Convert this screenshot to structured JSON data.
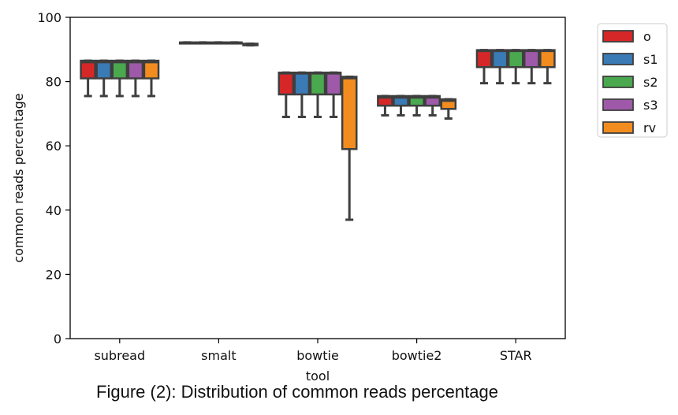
{
  "chart_data": {
    "type": "box",
    "xlabel": "tool",
    "ylabel": "common reads percentage",
    "ylim": [
      0,
      100
    ],
    "yticks": [
      0,
      20,
      40,
      60,
      80,
      100
    ],
    "categories": [
      "subread",
      "smalt",
      "bowtie",
      "bowtie2",
      "STAR"
    ],
    "legend": {
      "placement": "outside-top-right"
    },
    "grid": false,
    "series": [
      {
        "name": "o",
        "color": "#d62728",
        "boxes": [
          {
            "whislo": 75.5,
            "q1": 81,
            "median": 86,
            "q3": 86.5,
            "whishi": 86.5
          },
          {
            "whislo": 92,
            "q1": 92,
            "median": 92,
            "q3": 92.2,
            "whishi": 92.2
          },
          {
            "whislo": 69,
            "q1": 76,
            "median": 82.5,
            "q3": 82.8,
            "whishi": 82.8
          },
          {
            "whislo": 69.5,
            "q1": 72.5,
            "median": 75,
            "q3": 75.5,
            "whishi": 75.5
          },
          {
            "whislo": 79.5,
            "q1": 84.5,
            "median": 89.5,
            "q3": 89.8,
            "whishi": 89.8
          }
        ]
      },
      {
        "name": "s1",
        "color": "#3a7ab5",
        "boxes": [
          {
            "whislo": 75.5,
            "q1": 81,
            "median": 86,
            "q3": 86.5,
            "whishi": 86.5
          },
          {
            "whislo": 92,
            "q1": 92,
            "median": 92,
            "q3": 92.2,
            "whishi": 92.2
          },
          {
            "whislo": 69,
            "q1": 76,
            "median": 82.5,
            "q3": 82.8,
            "whishi": 82.8
          },
          {
            "whislo": 69.5,
            "q1": 72.5,
            "median": 75,
            "q3": 75.5,
            "whishi": 75.5
          },
          {
            "whislo": 79.5,
            "q1": 84.5,
            "median": 89.5,
            "q3": 89.8,
            "whishi": 89.8
          }
        ]
      },
      {
        "name": "s2",
        "color": "#4aa84f",
        "boxes": [
          {
            "whislo": 75.5,
            "q1": 81,
            "median": 86,
            "q3": 86.5,
            "whishi": 86.5
          },
          {
            "whislo": 92,
            "q1": 92,
            "median": 92,
            "q3": 92.2,
            "whishi": 92.2
          },
          {
            "whislo": 69,
            "q1": 76,
            "median": 82.5,
            "q3": 82.8,
            "whishi": 82.8
          },
          {
            "whislo": 69.5,
            "q1": 72.5,
            "median": 75,
            "q3": 75.5,
            "whishi": 75.5
          },
          {
            "whislo": 79.5,
            "q1": 84.5,
            "median": 89.5,
            "q3": 89.8,
            "whishi": 89.8
          }
        ]
      },
      {
        "name": "s3",
        "color": "#9e5aa8",
        "boxes": [
          {
            "whislo": 75.5,
            "q1": 81,
            "median": 86,
            "q3": 86.5,
            "whishi": 86.5
          },
          {
            "whislo": 92,
            "q1": 92,
            "median": 92,
            "q3": 92.2,
            "whishi": 92.2
          },
          {
            "whislo": 69,
            "q1": 76,
            "median": 82.5,
            "q3": 82.8,
            "whishi": 82.8
          },
          {
            "whislo": 69.5,
            "q1": 72.5,
            "median": 75,
            "q3": 75.5,
            "whishi": 75.5
          },
          {
            "whislo": 79.5,
            "q1": 84.5,
            "median": 89.5,
            "q3": 89.8,
            "whishi": 89.8
          }
        ]
      },
      {
        "name": "rv",
        "color": "#f28c1f",
        "boxes": [
          {
            "whislo": 75.5,
            "q1": 81,
            "median": 86,
            "q3": 86.5,
            "whishi": 86.5
          },
          {
            "whislo": 91.3,
            "q1": 91.3,
            "median": 91.5,
            "q3": 91.8,
            "whishi": 91.8
          },
          {
            "whislo": 37,
            "q1": 59,
            "median": 81,
            "q3": 81.5,
            "whishi": 81.5
          },
          {
            "whislo": 68.5,
            "q1": 71.5,
            "median": 74,
            "q3": 74.5,
            "whishi": 74.5
          },
          {
            "whislo": 79.5,
            "q1": 84.5,
            "median": 89.5,
            "q3": 89.8,
            "whishi": 89.8
          }
        ]
      }
    ]
  },
  "caption": "Figure (2): Distribution of common reads percentage"
}
